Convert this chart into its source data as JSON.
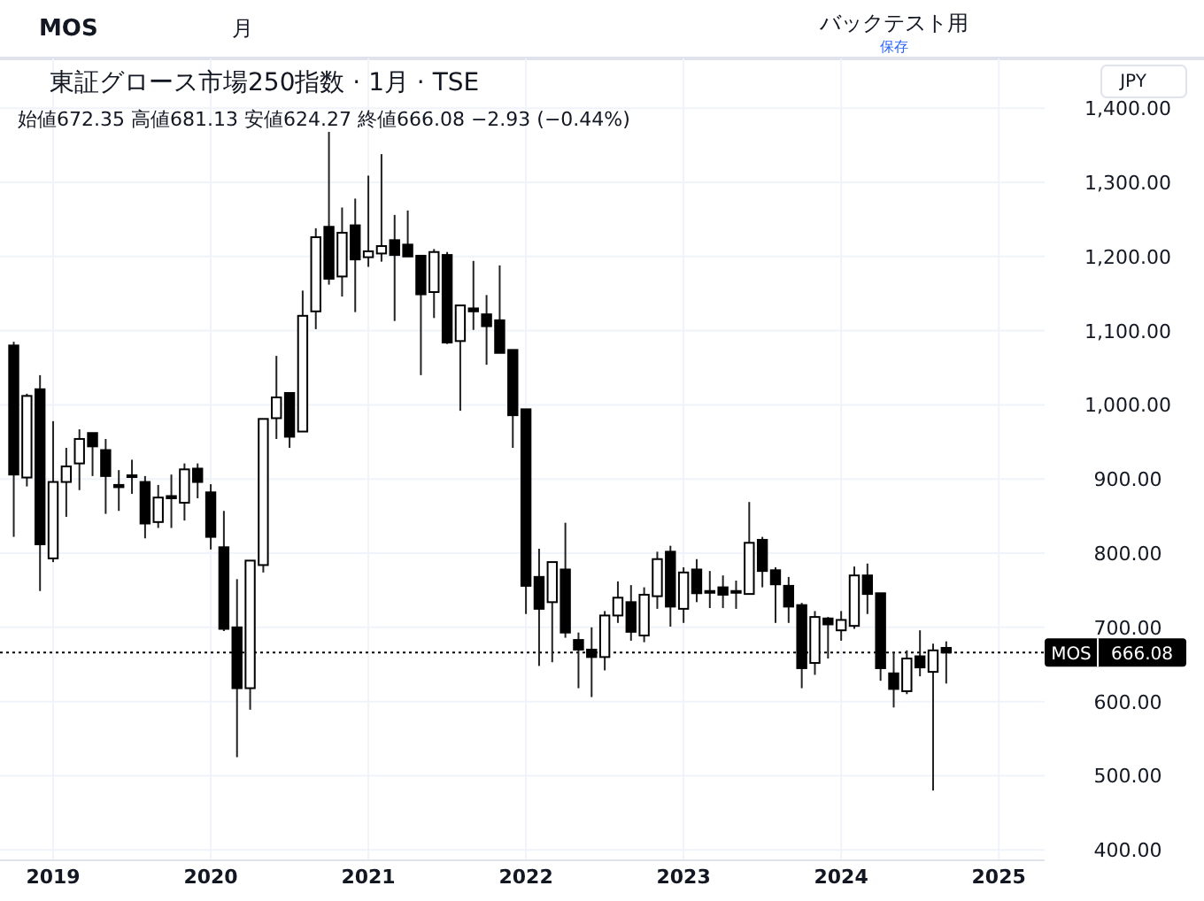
{
  "chart_data": {
    "type": "candlestick",
    "title": "東証グロース市場250指数 · 1月 · TSE",
    "subtitle": "始値672.35 高値681.13 安値624.27 終値666.08 −2.93 (−0.44%)",
    "annotations": [
      "MOS",
      "月",
      "バックテスト用",
      "保存",
      "JPY",
      "666.08"
    ],
    "x": [
      "2018-10",
      "2018-11",
      "2018-12",
      "2019-01",
      "2019-02",
      "2019-03",
      "2019-04",
      "2019-05",
      "2019-06",
      "2019-07",
      "2019-08",
      "2019-09",
      "2019-10",
      "2019-11",
      "2019-12",
      "2020-01",
      "2020-02",
      "2020-03",
      "2020-04",
      "2020-05",
      "2020-06",
      "2020-07",
      "2020-08",
      "2020-09",
      "2020-10",
      "2020-11",
      "2020-12",
      "2021-01",
      "2021-02",
      "2021-03",
      "2021-04",
      "2021-05",
      "2021-06",
      "2021-07",
      "2021-08",
      "2021-09",
      "2021-10",
      "2021-11",
      "2021-12",
      "2022-01",
      "2022-02",
      "2022-03",
      "2022-04",
      "2022-05",
      "2022-06",
      "2022-07",
      "2022-08",
      "2022-09",
      "2022-10",
      "2022-11",
      "2022-12",
      "2023-01",
      "2023-02",
      "2023-03",
      "2023-04",
      "2023-05",
      "2023-06",
      "2023-07",
      "2023-08",
      "2023-09",
      "2023-10",
      "2023-11",
      "2023-12",
      "2024-01",
      "2024-02",
      "2024-03",
      "2024-04",
      "2024-05",
      "2024-06",
      "2024-07",
      "2024-08",
      "2024-09"
    ],
    "ohlc": [
      [
        1080,
        1085,
        822,
        906
      ],
      [
        902,
        1015,
        890,
        1012
      ],
      [
        1021,
        1040,
        749,
        812
      ],
      [
        793,
        978,
        788,
        896
      ],
      [
        896,
        942,
        849,
        917
      ],
      [
        921,
        967,
        885,
        954
      ],
      [
        962,
        962,
        904,
        944
      ],
      [
        939,
        954,
        853,
        904
      ],
      [
        892,
        912,
        857,
        889
      ],
      [
        903,
        926,
        880,
        905
      ],
      [
        896,
        904,
        820,
        840
      ],
      [
        842,
        892,
        834,
        875
      ],
      [
        877,
        906,
        834,
        874
      ],
      [
        868,
        921,
        844,
        913
      ],
      [
        914,
        921,
        874,
        896
      ],
      [
        882,
        893,
        805,
        822
      ],
      [
        808,
        857,
        695,
        698
      ],
      [
        700,
        765,
        525,
        618
      ],
      [
        618,
        790,
        589,
        790
      ],
      [
        784,
        981,
        774,
        981
      ],
      [
        982,
        1066,
        954,
        1010
      ],
      [
        1016,
        1016,
        942,
        957
      ],
      [
        964,
        1154,
        964,
        1120
      ],
      [
        1126,
        1238,
        1102,
        1226
      ],
      [
        1240,
        1368,
        1162,
        1170
      ],
      [
        1173,
        1266,
        1146,
        1232
      ],
      [
        1242,
        1278,
        1125,
        1196
      ],
      [
        1199,
        1309,
        1186,
        1207
      ],
      [
        1204,
        1338,
        1193,
        1214
      ],
      [
        1222,
        1256,
        1113,
        1202
      ],
      [
        1216,
        1262,
        1200,
        1200
      ],
      [
        1201,
        1201,
        1040,
        1149
      ],
      [
        1152,
        1210,
        1117,
        1206
      ],
      [
        1202,
        1206,
        1082,
        1084
      ],
      [
        1086,
        1134,
        992,
        1134
      ],
      [
        1130,
        1194,
        1101,
        1126
      ],
      [
        1122,
        1148,
        1054,
        1106
      ],
      [
        1114,
        1188,
        1070,
        1070
      ],
      [
        1074,
        1074,
        942,
        986
      ],
      [
        994,
        994,
        718,
        756
      ],
      [
        768,
        806,
        648,
        725
      ],
      [
        734,
        788,
        653,
        788
      ],
      [
        778,
        841,
        686,
        693
      ],
      [
        683,
        693,
        618,
        670
      ],
      [
        670,
        700,
        606,
        660
      ],
      [
        660,
        722,
        642,
        716
      ],
      [
        716,
        762,
        706,
        740
      ],
      [
        734,
        757,
        682,
        694
      ],
      [
        689,
        754,
        680,
        744
      ],
      [
        742,
        802,
        725,
        792
      ],
      [
        802,
        810,
        701,
        728
      ],
      [
        725,
        781,
        706,
        774
      ],
      [
        778,
        792,
        734,
        746
      ],
      [
        749,
        776,
        726,
        748
      ],
      [
        754,
        770,
        726,
        744
      ],
      [
        748,
        763,
        725,
        749
      ],
      [
        745,
        869,
        745,
        814
      ],
      [
        818,
        822,
        754,
        776
      ],
      [
        777,
        781,
        706,
        758
      ],
      [
        756,
        768,
        706,
        728
      ],
      [
        730,
        733,
        618,
        645
      ],
      [
        652,
        722,
        636,
        714
      ],
      [
        712,
        714,
        658,
        704
      ],
      [
        696,
        722,
        682,
        710
      ],
      [
        702,
        782,
        698,
        770
      ],
      [
        770,
        786,
        718,
        745
      ],
      [
        746,
        746,
        628,
        645
      ],
      [
        638,
        666,
        592,
        617
      ],
      [
        614,
        669,
        610,
        658
      ],
      [
        661,
        696,
        634,
        646
      ],
      [
        640,
        678,
        480,
        669
      ],
      [
        672.35,
        681.13,
        624.27,
        666.08
      ]
    ],
    "xlim": [
      "2018-08-30",
      "2025-04-16"
    ],
    "xticks": [
      "2019",
      "2020",
      "2021",
      "2022",
      "2023",
      "2024",
      "2025"
    ],
    "ylim": [
      386,
      1467
    ],
    "yticks": [
      {
        "value": 400,
        "label": "400.00"
      },
      {
        "value": 500,
        "label": "500.00"
      },
      {
        "value": 600,
        "label": "600.00"
      },
      {
        "value": 700,
        "label": "700.00"
      },
      {
        "value": 800,
        "label": "800.00"
      },
      {
        "value": 900,
        "label": "900.00"
      },
      {
        "value": 1000,
        "label": "1,000.00"
      },
      {
        "value": 1100,
        "label": "1,100.00"
      },
      {
        "value": 1200,
        "label": "1,200.00"
      },
      {
        "value": 1300,
        "label": "1,300.00"
      },
      {
        "value": 1400,
        "label": "1,400.00"
      }
    ],
    "grid": true,
    "ref_lines": [
      {
        "axis": "y",
        "value": 666.08,
        "label": "MOS",
        "color": "#000000",
        "line_style": "dotted"
      }
    ]
  }
}
